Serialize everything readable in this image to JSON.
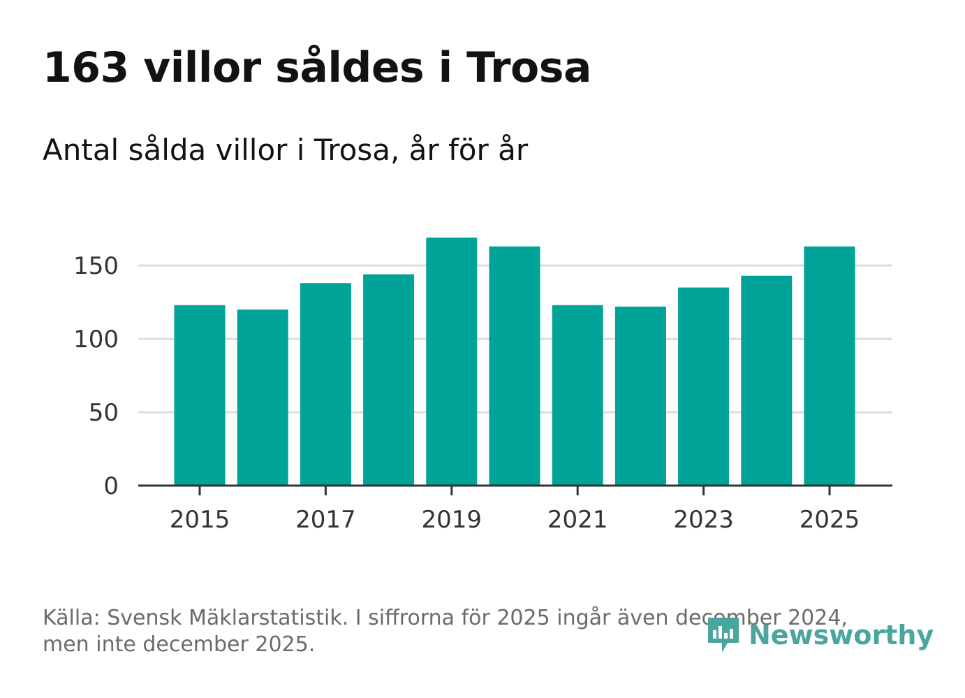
{
  "header": {
    "title": "163 villor såldes i Trosa",
    "subtitle": "Antal sålda villor i Trosa, år för år"
  },
  "footer": {
    "source": "Källa: Svensk Mäklarstatistik. I siffrorna för 2025 ingår även december 2024, men inte december 2025.",
    "brand": "Newsworthy"
  },
  "colors": {
    "bar": "#00a398",
    "grid": "#dcdcdc",
    "axis": "#333333",
    "text": "#333333",
    "brand": "#4aa59f"
  },
  "chart_data": {
    "type": "bar",
    "title": "Antal sålda villor i Trosa, år för år",
    "xlabel": "",
    "ylabel": "",
    "categories": [
      "2015",
      "2016",
      "2017",
      "2018",
      "2019",
      "2020",
      "2021",
      "2022",
      "2023",
      "2024",
      "2025"
    ],
    "values": [
      123,
      120,
      138,
      144,
      169,
      163,
      123,
      122,
      135,
      143,
      163
    ],
    "ylim": [
      0,
      180
    ],
    "yticks": [
      0,
      50,
      100,
      150
    ],
    "xtick_labels": [
      "2015",
      "2017",
      "2019",
      "2021",
      "2023",
      "2025"
    ],
    "grid": true,
    "legend": "none"
  }
}
